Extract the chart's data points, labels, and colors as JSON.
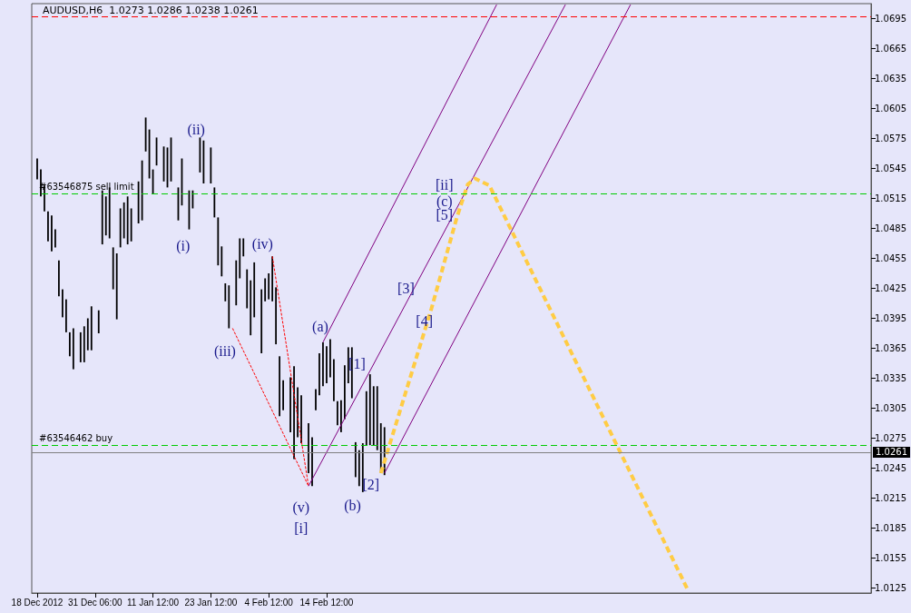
{
  "chart_data": {
    "type": "bar",
    "title": "AUDUSD,H6  1.0273 1.0286 1.0238 1.0261",
    "categories": [
      null,
      "18 Dec 2012",
      null,
      null,
      null,
      null,
      null,
      null,
      null,
      null,
      null,
      null,
      null,
      null,
      null,
      null,
      null,
      "31 Dec 06:00",
      null,
      null,
      null,
      null,
      null,
      null,
      null,
      null,
      null,
      null,
      null,
      null,
      null,
      null,
      null,
      "11 Jan 12:00",
      null,
      null,
      null,
      null,
      null,
      null,
      null,
      null,
      null,
      null,
      null,
      null,
      null,
      null,
      null,
      "23 Jan 12:00",
      null,
      null,
      null,
      null,
      null,
      null,
      null,
      null,
      null,
      null,
      null,
      null,
      null,
      null,
      null,
      "4 Feb 12:00",
      null,
      null,
      null,
      null,
      null,
      null,
      null,
      null,
      null,
      null,
      null,
      null,
      null,
      null,
      null,
      "14 Feb 12:00",
      null,
      null,
      null,
      null,
      null,
      null,
      null,
      null,
      null,
      null,
      null,
      null,
      null,
      null,
      null,
      null,
      null,
      null,
      null,
      null,
      null,
      null,
      null,
      null,
      null,
      null,
      null,
      null,
      null,
      null,
      null,
      null,
      null,
      null,
      null,
      null,
      null,
      null,
      null,
      null,
      null,
      null,
      null,
      null,
      null,
      null,
      null,
      null,
      null,
      null,
      null,
      null,
      null,
      null,
      null,
      null,
      null,
      null,
      null,
      null,
      null,
      null,
      null,
      null,
      null,
      null,
      null,
      null,
      null,
      null,
      null,
      null,
      null,
      null,
      null,
      null,
      null,
      null,
      null,
      null,
      null,
      null,
      null,
      null,
      null,
      null,
      null,
      null,
      null,
      null,
      null,
      null,
      null,
      null,
      null,
      null,
      null,
      null,
      null,
      null,
      null,
      null,
      null,
      null,
      null,
      null,
      null,
      null,
      null,
      null,
      null,
      null,
      null,
      null,
      null,
      null,
      null,
      null,
      null,
      null,
      null,
      null,
      null,
      null,
      null,
      null,
      null,
      null,
      null,
      null,
      null,
      null,
      null,
      null,
      null,
      null,
      null,
      null,
      null,
      null,
      null,
      null,
      null,
      null,
      null,
      null,
      null,
      null,
      null,
      null
    ],
    "ylim": [
      1.012,
      1.071
    ],
    "yticks": [
      1.0125,
      1.0155,
      1.0185,
      1.0215,
      1.0245,
      1.0275,
      1.0305,
      1.0335,
      1.0365,
      1.0395,
      1.0425,
      1.0455,
      1.0485,
      1.0515,
      1.0545,
      1.0575,
      1.0605,
      1.0635,
      1.0665,
      1.0695
    ],
    "marker": "none",
    "series": [
      {
        "color": "#000000",
        "base": [
          null,
          1.0534,
          1.0517,
          1.0502,
          1.0472,
          1.0462,
          1.0466,
          1.0417,
          1.0396,
          1.0381,
          1.0357,
          1.0344,
          null,
          1.0351,
          1.0351,
          1.0363,
          1.0363,
          null,
          1.038,
          1.0469,
          1.0478,
          1.0475,
          1.0424,
          1.0394,
          1.0466,
          1.0475,
          1.0469,
          1.0472,
          null,
          1.049,
          1.0493,
          1.0562,
          1.0535,
          1.052,
          1.0548,
          null,
          1.0532,
          1.0526,
          1.0532,
          null,
          1.0493,
          1.0508,
          null,
          1.0484,
          1.0505,
          null,
          1.0541,
          1.053,
          null,
          1.053,
          1.0496,
          1.0448,
          1.0437,
          1.0412,
          1.0385,
          null,
          1.0408,
          1.0435,
          1.0457,
          1.0405,
          1.0378,
          1.0396,
          null,
          1.036,
          1.0412,
          1.0414,
          1.0412,
          1.0369,
          1.0297,
          1.0303,
          null,
          1.0281,
          1.0254,
          1.0276,
          1.027,
          null,
          1.024,
          1.0227,
          1.0303,
          1.0318,
          1.0327,
          1.033,
          1.0336,
          1.0312,
          1.0288,
          1.0281,
          1.0294,
          1.033,
          1.0315,
          1.0236,
          1.0227,
          1.0221,
          1.0268,
          1.0268,
          1.0268,
          1.0263,
          1.024,
          1.0238,
          null,
          null,
          null,
          null,
          null,
          null,
          null,
          null,
          null,
          null,
          null,
          null,
          null,
          null,
          null,
          null,
          null,
          null,
          null,
          null,
          null,
          null,
          null,
          null,
          null,
          null,
          null,
          null,
          null,
          null,
          null,
          null,
          null,
          null,
          null,
          null,
          null,
          null,
          null,
          null,
          null,
          null,
          null,
          null,
          null,
          null,
          null,
          null,
          null,
          null,
          null,
          null,
          null,
          null,
          null,
          null,
          null,
          null,
          null,
          null,
          null,
          null,
          null,
          null,
          null,
          null,
          null,
          null,
          null,
          null,
          null,
          null,
          null,
          null,
          null,
          null,
          null,
          null,
          null,
          null,
          null,
          null,
          null,
          null,
          null,
          null,
          null,
          null,
          null,
          null,
          null,
          null,
          null,
          null,
          null,
          null,
          null,
          null,
          null,
          null,
          null,
          null,
          null,
          null,
          null,
          null,
          null,
          null,
          null,
          null,
          null,
          null,
          null,
          null,
          null,
          null,
          null,
          null,
          null,
          null,
          null,
          null,
          null,
          null,
          null,
          null,
          null,
          null,
          null,
          null,
          null,
          null,
          null,
          null
        ],
        "values": [
          null,
          0.0021,
          0.0027,
          0.0026,
          0.003,
          0.0036,
          0.0018,
          0.0036,
          0.0028,
          0.0033,
          0.0024,
          0.0041,
          null,
          0.003,
          0.0036,
          0.0032,
          0.0044,
          null,
          0.0023,
          0.0054,
          0.0039,
          0.0051,
          0.0042,
          0.0066,
          0.0039,
          0.0036,
          0.0048,
          0.0033,
          null,
          0.0042,
          0.006,
          0.0034,
          0.0049,
          0.0024,
          0.0028,
          null,
          0.0035,
          0.004,
          0.0044,
          null,
          0.0033,
          0.0047,
          null,
          0.0039,
          0.0018,
          null,
          0.0035,
          0.0043,
          null,
          0.0036,
          0.003,
          0.0048,
          0.003,
          0.0018,
          0.0043,
          null,
          0.0045,
          0.004,
          0.0018,
          0.0039,
          0.0055,
          0.0055,
          null,
          0.0064,
          0.0023,
          0.0026,
          0.0045,
          0.0057,
          0.006,
          0.003,
          null,
          0.0055,
          0.0093,
          0.005,
          0.0048,
          null,
          0.005,
          0.0049,
          0.0021,
          0.0042,
          0.0044,
          0.0037,
          0.0038,
          0.0042,
          0.0024,
          0.0032,
          0.0054,
          0.0036,
          0.0051,
          0.0035,
          0.0036,
          0.0049,
          0.0054,
          0.0071,
          0.0059,
          0.0064,
          0.005,
          0.0048,
          null,
          null,
          null,
          null,
          null,
          null,
          null,
          null,
          null,
          null,
          null,
          null,
          null,
          null,
          null,
          null,
          null,
          null,
          null,
          null,
          null,
          null,
          null,
          null,
          null,
          null,
          null,
          null,
          null,
          null,
          null,
          null,
          null,
          null,
          null,
          null,
          null,
          null,
          null,
          null,
          null,
          null,
          null,
          null,
          null,
          null,
          null,
          null,
          null,
          null,
          null,
          null,
          null,
          null,
          null,
          null,
          null,
          null,
          null,
          null,
          null,
          null,
          null,
          null,
          null,
          null,
          null,
          null,
          null,
          null,
          null,
          null,
          null,
          null,
          null,
          null,
          null,
          null,
          null,
          null,
          null,
          null,
          null,
          null,
          null,
          null,
          null,
          null,
          null,
          null,
          null,
          null,
          null,
          null,
          null,
          null,
          null,
          null,
          null,
          null,
          null,
          null,
          null,
          null,
          null,
          null,
          null,
          null,
          null,
          null,
          null,
          null,
          null,
          null,
          null,
          null,
          null,
          null,
          null,
          null,
          null,
          null,
          null,
          null,
          null,
          null,
          null,
          null,
          null,
          null,
          null,
          null,
          null,
          null
        ]
      },
      {
        "type": "line",
        "color": "#ff0000",
        "line_style": "dashed",
        "values": [
          null,
          null,
          null,
          null,
          null,
          null,
          null,
          null,
          null,
          null,
          null,
          null,
          null,
          null,
          null,
          null,
          null,
          null,
          null,
          null,
          null,
          null,
          null,
          null,
          null,
          null,
          null,
          null,
          null,
          null,
          null,
          null,
          null,
          null,
          null,
          null,
          null,
          null,
          null,
          null,
          null,
          null,
          null,
          null,
          null,
          null,
          null,
          null,
          null,
          null,
          null,
          null,
          null,
          null,
          null,
          null,
          null,
          null,
          null,
          null,
          null,
          null,
          null,
          null,
          null,
          null,
          1.0457,
          null,
          null,
          null,
          null,
          null,
          null,
          null,
          null,
          null,
          1.0227,
          null,
          null,
          null,
          null,
          null,
          null,
          null,
          null,
          null,
          null,
          null,
          null,
          null,
          null,
          null,
          null,
          null,
          null,
          null,
          null,
          null,
          null,
          null,
          null,
          null,
          null,
          null,
          null,
          null,
          null,
          null,
          null,
          null,
          null,
          null,
          null,
          null,
          null,
          null,
          null,
          null,
          null,
          null,
          null,
          null,
          null,
          null,
          null,
          null,
          null,
          null,
          null,
          null,
          null,
          null,
          null,
          null,
          null,
          null,
          null,
          null,
          null,
          null,
          null,
          null,
          null,
          null,
          null,
          null,
          null,
          null,
          null,
          null,
          null,
          null,
          null,
          null,
          null,
          null,
          null,
          null,
          null,
          null,
          null,
          null,
          null,
          null,
          null,
          null,
          null,
          null,
          null,
          null,
          null,
          null,
          null,
          null,
          null,
          null,
          null,
          null,
          null,
          null,
          null,
          null,
          null,
          null,
          null,
          null,
          null,
          null,
          null,
          null,
          null,
          null,
          null,
          null,
          null,
          null,
          null,
          null,
          null,
          null,
          null,
          null,
          null,
          null,
          null,
          null,
          null,
          null,
          null,
          null,
          null,
          null,
          null,
          null,
          null,
          null,
          null,
          null,
          null,
          null,
          null,
          null,
          null,
          null,
          null,
          null,
          null,
          null,
          null,
          null,
          null,
          null
        ]
      },
      {
        "type": "line",
        "color": "#ff0000",
        "line_style": "dashed",
        "values": [
          null,
          null,
          null,
          null,
          null,
          null,
          null,
          null,
          null,
          null,
          null,
          null,
          null,
          null,
          null,
          null,
          null,
          null,
          null,
          null,
          null,
          null,
          null,
          null,
          null,
          null,
          null,
          null,
          null,
          null,
          null,
          null,
          null,
          null,
          null,
          null,
          null,
          null,
          null,
          null,
          null,
          null,
          null,
          null,
          null,
          null,
          null,
          null,
          null,
          null,
          null,
          null,
          null,
          null,
          null,
          1.0385,
          null,
          null,
          null,
          null,
          null,
          null,
          null,
          null,
          null,
          null,
          null,
          null,
          null,
          null,
          null,
          null,
          null,
          null,
          null,
          null,
          1.0227,
          null,
          null,
          null,
          null,
          null,
          null,
          null,
          null,
          null,
          null,
          null,
          null,
          null,
          null,
          null,
          null,
          null,
          null,
          null,
          null,
          null,
          null,
          null,
          null,
          null,
          null,
          null,
          null,
          null,
          null,
          null,
          null,
          null,
          null,
          null,
          null,
          null,
          null,
          null,
          null,
          null,
          null,
          null,
          null,
          null,
          null,
          null,
          null,
          null,
          null,
          null,
          null,
          null,
          null,
          null,
          null,
          null,
          null,
          null,
          null,
          null,
          null,
          null,
          null,
          null,
          null,
          null,
          null,
          null,
          null,
          null,
          null,
          null,
          null,
          null,
          null,
          null,
          null,
          null,
          null,
          null,
          null,
          null,
          null,
          null,
          null,
          null,
          null,
          null,
          null,
          null,
          null,
          null,
          null,
          null,
          null,
          null,
          null,
          null,
          null,
          null,
          null,
          null,
          null,
          null,
          null,
          null,
          null,
          null,
          null,
          null,
          null,
          null,
          null,
          null,
          null,
          null,
          null,
          null,
          null,
          null,
          null,
          null,
          null,
          null,
          null,
          null,
          null,
          null,
          null,
          null,
          null,
          null,
          null,
          null,
          null,
          null,
          null,
          null,
          null,
          null,
          null,
          null,
          null,
          null,
          null,
          null,
          null,
          null,
          null,
          null,
          null,
          null,
          null,
          null
        ]
      },
      {
        "type": "line",
        "color": "#800080",
        "line_style": "solid",
        "values": [
          null,
          null,
          null,
          null,
          null,
          null,
          null,
          null,
          null,
          null,
          null,
          null,
          null,
          null,
          null,
          null,
          null,
          null,
          null,
          null,
          null,
          null,
          null,
          null,
          null,
          null,
          null,
          null,
          null,
          null,
          null,
          null,
          null,
          null,
          null,
          null,
          null,
          null,
          null,
          null,
          null,
          null,
          null,
          null,
          null,
          null,
          null,
          null,
          null,
          null,
          null,
          null,
          null,
          null,
          null,
          null,
          null,
          null,
          null,
          null,
          null,
          null,
          null,
          null,
          null,
          null,
          null,
          null,
          null,
          null,
          null,
          null,
          null,
          null,
          null,
          null,
          null,
          null,
          null,
          null,
          1.0371,
          null,
          null,
          null,
          null,
          null,
          null,
          null,
          null,
          null,
          null,
          null,
          null,
          null,
          null,
          null,
          null,
          null,
          null,
          null,
          null,
          null,
          null,
          null,
          null,
          null,
          null,
          null,
          null,
          null,
          null,
          null,
          null,
          null,
          null,
          null,
          null,
          null,
          null,
          null,
          null,
          null,
          null,
          null,
          null,
          null,
          null,
          null,
          1.0709,
          null,
          null,
          null,
          null,
          null,
          null,
          null,
          null,
          null,
          null,
          null,
          null,
          null,
          null,
          null,
          null,
          null,
          null,
          null,
          null,
          null,
          null,
          null,
          null,
          null,
          null,
          null,
          null,
          null,
          null,
          null,
          null,
          null,
          null,
          null,
          null,
          null,
          null,
          null,
          null,
          null,
          null,
          null,
          null,
          null,
          null,
          null,
          null,
          null,
          null,
          null,
          null,
          null,
          null,
          null,
          null,
          null,
          null,
          null,
          null,
          null,
          null,
          null,
          null,
          null,
          null,
          null,
          null,
          null,
          null,
          null,
          null,
          null,
          null,
          null,
          null,
          null,
          null,
          null,
          null,
          null,
          null,
          null,
          null,
          null,
          null,
          null,
          null,
          null,
          null,
          null,
          null,
          null,
          null,
          null,
          null,
          null,
          null,
          null,
          null,
          null,
          null,
          null
        ]
      },
      {
        "type": "line",
        "color": "#800080",
        "line_style": "solid",
        "values": [
          null,
          null,
          null,
          null,
          null,
          null,
          null,
          null,
          null,
          null,
          null,
          null,
          null,
          null,
          null,
          null,
          null,
          null,
          null,
          null,
          null,
          null,
          null,
          null,
          null,
          null,
          null,
          null,
          null,
          null,
          null,
          null,
          null,
          null,
          null,
          null,
          null,
          null,
          null,
          null,
          null,
          null,
          null,
          null,
          null,
          null,
          null,
          null,
          null,
          null,
          null,
          null,
          null,
          null,
          null,
          null,
          null,
          null,
          null,
          null,
          null,
          null,
          null,
          null,
          null,
          null,
          null,
          null,
          null,
          null,
          null,
          null,
          null,
          null,
          null,
          null,
          1.0227,
          null,
          null,
          null,
          null,
          null,
          null,
          null,
          null,
          null,
          null,
          null,
          null,
          null,
          null,
          null,
          null,
          null,
          null,
          null,
          null,
          null,
          null,
          null,
          null,
          null,
          null,
          null,
          null,
          null,
          null,
          null,
          null,
          null,
          null,
          null,
          null,
          null,
          null,
          null,
          null,
          null,
          null,
          null,
          null,
          null,
          null,
          null,
          null,
          null,
          null,
          null,
          null,
          null,
          null,
          null,
          null,
          null,
          null,
          null,
          null,
          null,
          null,
          null,
          null,
          null,
          null,
          null,
          null,
          null,
          null,
          1.0709,
          null,
          null,
          null,
          null,
          null,
          null,
          null,
          null,
          null,
          null,
          null,
          null,
          null,
          null,
          null,
          null,
          null,
          null,
          null,
          null,
          null,
          null,
          null,
          null,
          null,
          null,
          null,
          null,
          null,
          null,
          null,
          null,
          null,
          null,
          null,
          null,
          null,
          null,
          null,
          null,
          null,
          null,
          null,
          null,
          null,
          null,
          null,
          null,
          null,
          null,
          null,
          null,
          null,
          null,
          null,
          null,
          null,
          null,
          null,
          null,
          null,
          null,
          null,
          null,
          null,
          null,
          null,
          null,
          null,
          null,
          null,
          null,
          null,
          null,
          null,
          null,
          null,
          null,
          null,
          null,
          null,
          null,
          null,
          null
        ]
      },
      {
        "type": "line",
        "color": "#800080",
        "line_style": "solid",
        "values": [
          null,
          null,
          null,
          null,
          null,
          null,
          null,
          null,
          null,
          null,
          null,
          null,
          null,
          null,
          null,
          null,
          null,
          null,
          null,
          null,
          null,
          null,
          null,
          null,
          null,
          null,
          null,
          null,
          null,
          null,
          null,
          null,
          null,
          null,
          null,
          null,
          null,
          null,
          null,
          null,
          null,
          null,
          null,
          null,
          null,
          null,
          null,
          null,
          null,
          null,
          null,
          null,
          null,
          null,
          null,
          null,
          null,
          null,
          null,
          null,
          null,
          null,
          null,
          null,
          null,
          null,
          null,
          null,
          null,
          null,
          null,
          null,
          null,
          null,
          null,
          null,
          null,
          null,
          null,
          null,
          null,
          null,
          null,
          null,
          null,
          null,
          null,
          null,
          null,
          null,
          null,
          null,
          null,
          null,
          null,
          null,
          null,
          1.024,
          null,
          null,
          null,
          null,
          null,
          null,
          null,
          null,
          null,
          null,
          null,
          null,
          null,
          null,
          null,
          null,
          null,
          null,
          null,
          null,
          null,
          null,
          null,
          null,
          null,
          null,
          null,
          null,
          null,
          null,
          null,
          null,
          null,
          null,
          null,
          null,
          null,
          null,
          null,
          null,
          null,
          null,
          null,
          null,
          null,
          null,
          null,
          null,
          null,
          null,
          null,
          null,
          null,
          null,
          null,
          null,
          null,
          null,
          null,
          null,
          null,
          null,
          null,
          null,
          null,
          null,
          null,
          1.0709,
          null,
          null,
          null,
          null,
          null,
          null,
          null,
          null,
          null,
          null,
          null,
          null,
          null,
          null,
          null,
          null,
          null,
          null,
          null,
          null,
          null,
          null,
          null,
          null,
          null,
          null,
          null,
          null,
          null,
          null,
          null,
          null,
          null,
          null,
          null,
          null,
          null,
          null,
          null,
          null,
          null,
          null,
          null,
          null,
          null,
          null,
          null,
          null,
          null,
          null,
          null,
          null,
          null,
          null,
          null,
          null,
          null,
          null,
          null,
          null,
          null,
          null,
          null,
          null,
          null,
          null
        ]
      },
      {
        "type": "line",
        "color": "#ffcc44",
        "line_style": "dashed",
        "values": [
          null,
          null,
          null,
          null,
          null,
          null,
          null,
          null,
          null,
          null,
          null,
          null,
          null,
          null,
          null,
          null,
          null,
          null,
          null,
          null,
          null,
          null,
          null,
          null,
          null,
          null,
          null,
          null,
          null,
          null,
          null,
          null,
          null,
          null,
          null,
          null,
          null,
          null,
          null,
          null,
          null,
          null,
          null,
          null,
          null,
          null,
          null,
          null,
          null,
          null,
          null,
          null,
          null,
          null,
          null,
          null,
          null,
          null,
          null,
          null,
          null,
          null,
          null,
          null,
          null,
          null,
          null,
          null,
          null,
          null,
          null,
          null,
          null,
          null,
          null,
          null,
          null,
          null,
          null,
          null,
          null,
          null,
          null,
          null,
          null,
          null,
          null,
          null,
          null,
          null,
          null,
          null,
          null,
          null,
          null,
          null,
          1.024,
          null,
          null,
          null,
          null,
          null,
          null,
          null,
          null,
          null,
          null,
          null,
          null,
          null,
          1.0405,
          null,
          null,
          null,
          null,
          null,
          null,
          1.0496,
          null,
          null,
          1.0529,
          null,
          1.0535,
          null,
          null,
          null,
          1.0528,
          null,
          null,
          null,
          null,
          1.0491,
          null,
          null,
          null,
          null,
          null,
          null,
          null,
          null,
          null,
          null,
          null,
          null,
          null,
          null,
          null,
          null,
          null,
          null,
          null,
          null,
          null,
          null,
          null,
          null,
          null,
          null,
          null,
          null,
          null,
          null,
          null,
          null,
          null,
          null,
          null,
          null,
          null,
          null,
          null,
          null,
          null,
          null,
          null,
          null,
          null,
          null,
          null,
          null,
          null,
          1.0122,
          null,
          null,
          null,
          null,
          null,
          null,
          null,
          null,
          null,
          null,
          null,
          null,
          null,
          null,
          null,
          null,
          null,
          null,
          null,
          null,
          null,
          null,
          null,
          null,
          null,
          null,
          null,
          null,
          null,
          null,
          null,
          null,
          null,
          null,
          null,
          null,
          null,
          null,
          null,
          null,
          null,
          null,
          null,
          null,
          null,
          null,
          null,
          null,
          null,
          null
        ]
      }
    ],
    "ref_lines": [
      {
        "axis": "y",
        "value": 1.0697,
        "color": "#ff0000",
        "line_style": "dashed"
      },
      {
        "axis": "y",
        "value": 1.052,
        "label": "#63546875 sell limit",
        "color": "#00cc00",
        "line_style": "dashed"
      },
      {
        "axis": "y",
        "value": 1.0268,
        "label": "#63546462 buy",
        "color": "#00cc00",
        "line_style": "dashed"
      },
      {
        "axis": "y",
        "value": 1.0261,
        "label": "1.0261",
        "color": "#808080",
        "line_style": "solid"
      }
    ],
    "annotations": [
      "(ii)",
      "(i)",
      "(iv)",
      "(iii)",
      "(v)",
      "[i]",
      "(a)",
      "(b)",
      "(c)",
      "[ii]",
      "[1]",
      "[2]",
      "[3]",
      "[4]",
      "[5]"
    ]
  }
}
